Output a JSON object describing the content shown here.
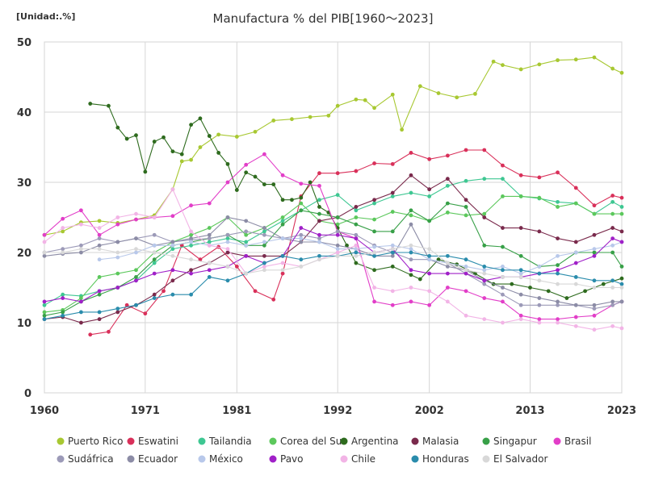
{
  "chart_data": {
    "type": "line",
    "title": "Manufactura % del PIB[1960～2023]",
    "unit_label": "[Unidad:.%]",
    "xlabel": "",
    "ylabel": "",
    "xlim": [
      1960,
      2023
    ],
    "ylim": [
      0,
      50
    ],
    "x_ticks": [
      1960,
      1971,
      1981,
      1992,
      2002,
      2013,
      2023
    ],
    "y_ticks": [
      0,
      10,
      20,
      30,
      40,
      50
    ],
    "grid": true,
    "legend_position": "bottom",
    "series": [
      {
        "name": "Puerto Rico",
        "color": "#a8c832",
        "x": [
          1960,
          1962,
          1964,
          1966,
          1968,
          1970,
          1972,
          1974,
          1975,
          1976,
          1977,
          1979,
          1981,
          1983,
          1985,
          1987,
          1989,
          1991,
          1992,
          1994,
          1995,
          1996,
          1998,
          1999,
          2001,
          2003,
          2005,
          2007,
          2009,
          2010,
          2012,
          2014,
          2016,
          2018,
          2020,
          2022,
          2023
        ],
        "y": [
          22.5,
          23.0,
          24.3,
          24.5,
          24.2,
          24.7,
          25.3,
          29.0,
          33.0,
          33.2,
          35.0,
          36.8,
          36.5,
          37.2,
          38.8,
          39.0,
          39.3,
          39.5,
          40.9,
          41.8,
          41.7,
          40.6,
          42.5,
          37.5,
          43.7,
          42.7,
          42.1,
          42.6,
          47.2,
          46.7,
          46.1,
          46.8,
          47.4,
          47.5,
          47.8,
          46.2,
          45.6
        ]
      },
      {
        "name": "Eswatini",
        "color": "#d9305a",
        "x": [
          1965,
          1967,
          1969,
          1971,
          1973,
          1975,
          1977,
          1979,
          1981,
          1983,
          1985,
          1986,
          1988,
          1990,
          1992,
          1994,
          1996,
          1998,
          2000,
          2002,
          2004,
          2006,
          2008,
          2010,
          2012,
          2014,
          2016,
          2018,
          2020,
          2022,
          2023
        ],
        "y": [
          8.3,
          8.7,
          12.5,
          11.3,
          14.5,
          21.0,
          19.0,
          20.8,
          18.0,
          14.5,
          13.3,
          17.0,
          28.0,
          31.3,
          31.3,
          31.6,
          32.7,
          32.6,
          34.2,
          33.3,
          33.8,
          34.6,
          34.6,
          32.4,
          31.0,
          30.7,
          31.4,
          29.2,
          26.7,
          28.1,
          27.8
        ]
      },
      {
        "name": "Tailandia",
        "color": "#3ec792",
        "x": [
          1960,
          1962,
          1964,
          1966,
          1968,
          1970,
          1972,
          1974,
          1976,
          1978,
          1980,
          1982,
          1984,
          1986,
          1988,
          1990,
          1992,
          1994,
          1996,
          1998,
          2000,
          2002,
          2004,
          2006,
          2008,
          2010,
          2012,
          2014,
          2016,
          2018,
          2020,
          2022,
          2023
        ],
        "y": [
          12.5,
          14.0,
          13.8,
          14.5,
          15.0,
          16.0,
          18.5,
          20.5,
          21.0,
          21.5,
          22.0,
          21.5,
          23.0,
          24.5,
          26.0,
          27.5,
          28.2,
          26.0,
          27.0,
          28.0,
          28.5,
          28.0,
          29.5,
          30.2,
          30.5,
          30.5,
          28.0,
          27.7,
          27.2,
          27.0,
          25.5,
          27.2,
          26.5
        ]
      },
      {
        "name": "Corea del Sur",
        "color": "#5cc85c",
        "x": [
          1960,
          1962,
          1964,
          1966,
          1968,
          1970,
          1972,
          1974,
          1976,
          1978,
          1980,
          1982,
          1984,
          1986,
          1988,
          1990,
          1992,
          1994,
          1996,
          1998,
          2000,
          2002,
          2004,
          2006,
          2008,
          2010,
          2012,
          2014,
          2016,
          2018,
          2020,
          2022,
          2023
        ],
        "y": [
          11.5,
          11.8,
          13.5,
          16.5,
          17.0,
          17.5,
          20.0,
          21.5,
          22.5,
          23.5,
          25.0,
          22.5,
          23.5,
          25.0,
          27.0,
          24.5,
          24.0,
          25.0,
          24.7,
          25.8,
          25.3,
          24.5,
          25.7,
          25.3,
          25.5,
          28.0,
          28.0,
          27.8,
          26.5,
          27.0,
          25.5,
          25.5,
          25.5
        ]
      },
      {
        "name": "Argentina",
        "color": "#2e6b1e",
        "x": [
          1965,
          1967,
          1968,
          1969,
          1970,
          1971,
          1972,
          1973,
          1974,
          1975,
          1976,
          1977,
          1978,
          1979,
          1980,
          1981,
          1982,
          1983,
          1984,
          1985,
          1986,
          1987,
          1988,
          1989,
          1990,
          1991,
          1992,
          1993,
          1994,
          1996,
          1998,
          2000,
          2001,
          2003,
          2005,
          2007,
          2009,
          2011,
          2013,
          2015,
          2017,
          2019,
          2021,
          2023
        ],
        "y": [
          41.2,
          40.9,
          37.8,
          36.2,
          36.7,
          31.5,
          35.8,
          36.4,
          34.4,
          34.0,
          38.2,
          39.1,
          36.6,
          34.2,
          32.6,
          28.9,
          31.4,
          30.8,
          29.7,
          29.7,
          27.5,
          27.5,
          27.8,
          30.0,
          26.5,
          25.7,
          23.5,
          21.0,
          18.5,
          17.5,
          18.0,
          16.8,
          16.2,
          19.0,
          18.3,
          17.0,
          15.5,
          15.5,
          15.0,
          14.5,
          13.5,
          14.5,
          15.5,
          16.3
        ]
      },
      {
        "name": "Malasia",
        "color": "#7a2a4c",
        "x": [
          1960,
          1962,
          1964,
          1966,
          1968,
          1970,
          1972,
          1974,
          1976,
          1978,
          1980,
          1982,
          1984,
          1986,
          1988,
          1990,
          1992,
          1994,
          1996,
          1998,
          2000,
          2002,
          2004,
          2006,
          2008,
          2010,
          2012,
          2014,
          2016,
          2018,
          2020,
          2022,
          2023
        ],
        "y": [
          10.5,
          10.8,
          10.0,
          10.5,
          11.5,
          12.5,
          14.0,
          16.0,
          17.5,
          18.5,
          20.0,
          19.5,
          19.5,
          19.5,
          21.5,
          24.5,
          25.0,
          26.5,
          27.5,
          28.5,
          31.0,
          29.0,
          30.5,
          27.5,
          25.0,
          23.5,
          23.5,
          23.0,
          22.0,
          21.5,
          22.5,
          23.5,
          23.0
        ]
      },
      {
        "name": "Singapur",
        "color": "#38a048",
        "x": [
          1960,
          1962,
          1964,
          1966,
          1968,
          1970,
          1972,
          1974,
          1976,
          1978,
          1980,
          1982,
          1984,
          1986,
          1988,
          1990,
          1992,
          1994,
          1996,
          1998,
          2000,
          2002,
          2004,
          2006,
          2008,
          2010,
          2012,
          2014,
          2016,
          2018,
          2020,
          2022,
          2023
        ],
        "y": [
          11.0,
          11.5,
          13.0,
          14.0,
          15.0,
          16.5,
          19.0,
          21.0,
          21.5,
          22.0,
          22.5,
          21.0,
          21.0,
          24.0,
          26.0,
          25.5,
          25.0,
          24.0,
          23.0,
          23.0,
          26.0,
          24.5,
          27.0,
          26.5,
          21.0,
          20.8,
          19.5,
          18.0,
          18.2,
          20.0,
          20.0,
          20.0,
          18.0
        ]
      },
      {
        "name": "Brasil",
        "color": "#e23ec8",
        "x": [
          1960,
          1962,
          1964,
          1966,
          1968,
          1970,
          1972,
          1974,
          1976,
          1978,
          1980,
          1982,
          1984,
          1986,
          1988,
          1990,
          1992,
          1994,
          1996,
          1998,
          2000,
          2002,
          2004,
          2006,
          2008,
          2010,
          2012,
          2014,
          2016,
          2018,
          2020,
          2022,
          2023
        ],
        "y": [
          22.5,
          24.8,
          26.0,
          22.5,
          24.0,
          24.7,
          25.0,
          25.2,
          26.7,
          27.0,
          30.0,
          32.5,
          34.0,
          31.0,
          29.8,
          29.5,
          23.0,
          22.0,
          13.0,
          12.5,
          13.0,
          12.5,
          15.0,
          14.5,
          13.5,
          13.0,
          11.0,
          10.5,
          10.5,
          10.8,
          11.0,
          12.5,
          13.0
        ]
      },
      {
        "name": "Sudáfrica",
        "color": "#9c9ab8",
        "x": [
          1960,
          1962,
          1964,
          1966,
          1968,
          1970,
          1972,
          1974,
          1976,
          1978,
          1980,
          1982,
          1984,
          1986,
          1988,
          1990,
          1992,
          1994,
          1996,
          1998,
          2000,
          2002,
          2004,
          2006,
          2008,
          2010,
          2012,
          2014,
          2016,
          2018,
          2020,
          2022,
          2023
        ],
        "y": [
          20.0,
          20.5,
          21.0,
          22.0,
          21.5,
          22.0,
          22.5,
          21.5,
          21.8,
          22.0,
          22.5,
          23.0,
          22.5,
          22.0,
          22.5,
          22.0,
          23.0,
          22.5,
          21.0,
          20.0,
          19.0,
          19.0,
          18.5,
          17.0,
          15.5,
          14.0,
          12.5,
          12.5,
          12.5,
          12.5,
          12.0,
          12.5,
          13.0
        ]
      },
      {
        "name": "Ecuador",
        "color": "#8c8ca6",
        "x": [
          1960,
          1962,
          1964,
          1966,
          1968,
          1970,
          1972,
          1974,
          1976,
          1978,
          1980,
          1982,
          1984,
          1986,
          1988,
          1990,
          1992,
          1994,
          1996,
          1998,
          2000,
          2002,
          2004,
          2006,
          2008,
          2010,
          2012,
          2014,
          2016,
          2018,
          2020,
          2022,
          2023
        ],
        "y": [
          19.5,
          19.8,
          20.0,
          21.0,
          21.5,
          22.0,
          21.0,
          21.5,
          22.0,
          22.5,
          25.0,
          24.5,
          23.5,
          22.0,
          21.5,
          21.5,
          21.0,
          20.5,
          19.5,
          19.5,
          24.0,
          19.0,
          18.0,
          17.5,
          16.0,
          15.0,
          14.0,
          13.5,
          13.0,
          12.5,
          12.5,
          13.0,
          13.0
        ]
      },
      {
        "name": "México",
        "color": "#b8c8ea",
        "x": [
          1966,
          1968,
          1970,
          1972,
          1974,
          1976,
          1978,
          1980,
          1982,
          1984,
          1986,
          1988,
          1990,
          1992,
          1994,
          1996,
          1998,
          2000,
          2002,
          2004,
          2006,
          2008,
          2010,
          2012,
          2014,
          2016,
          2018,
          2020,
          2022,
          2023
        ],
        "y": [
          19.0,
          19.3,
          20.0,
          21.0,
          21.0,
          21.5,
          21.0,
          21.5,
          21.0,
          21.5,
          22.0,
          22.0,
          21.5,
          20.5,
          20.5,
          20.8,
          21.0,
          20.5,
          19.0,
          18.5,
          18.0,
          17.5,
          18.0,
          17.0,
          18.0,
          19.5,
          20.0,
          20.5,
          21.0,
          21.5
        ]
      },
      {
        "name": "Pavo",
        "color": "#a020c8",
        "x": [
          1960,
          1962,
          1964,
          1966,
          1968,
          1970,
          1972,
          1974,
          1976,
          1978,
          1980,
          1982,
          1984,
          1986,
          1988,
          1990,
          1992,
          1994,
          1996,
          1998,
          2000,
          2002,
          2004,
          2006,
          2008,
          2010,
          2012,
          2014,
          2016,
          2018,
          2020,
          2022,
          2023
        ],
        "y": [
          13.0,
          13.5,
          13.0,
          14.5,
          15.0,
          16.0,
          17.0,
          17.5,
          17.0,
          17.5,
          18.0,
          19.5,
          18.5,
          19.5,
          23.5,
          22.5,
          22.5,
          22.0,
          20.0,
          20.5,
          17.5,
          17.0,
          17.0,
          17.0,
          16.0,
          16.5,
          16.5,
          17.0,
          17.5,
          18.5,
          19.5,
          22.0,
          21.5
        ]
      },
      {
        "name": "Chile",
        "color": "#f2b4e6",
        "x": [
          1960,
          1962,
          1964,
          1966,
          1968,
          1970,
          1972,
          1974,
          1976,
          1978,
          1980,
          1982,
          1984,
          1986,
          1988,
          1990,
          1992,
          1994,
          1996,
          1998,
          2000,
          2002,
          2004,
          2006,
          2008,
          2010,
          2012,
          2014,
          2016,
          2018,
          2020,
          2022,
          2023
        ],
        "y": [
          21.5,
          23.5,
          24.0,
          23.5,
          25.0,
          25.5,
          25.0,
          29.0,
          23.0,
          21.0,
          20.5,
          17.0,
          18.0,
          18.5,
          18.0,
          19.0,
          20.0,
          21.0,
          15.0,
          14.5,
          15.0,
          14.5,
          13.0,
          11.0,
          10.5,
          10.0,
          10.5,
          10.0,
          10.0,
          9.5,
          9.0,
          9.5,
          9.2
        ]
      },
      {
        "name": "Honduras",
        "color": "#2a8cac",
        "x": [
          1960,
          1962,
          1964,
          1966,
          1968,
          1970,
          1972,
          1974,
          1976,
          1978,
          1980,
          1982,
          1984,
          1986,
          1988,
          1990,
          1992,
          1994,
          1996,
          1998,
          2000,
          2002,
          2004,
          2006,
          2008,
          2010,
          2012,
          2014,
          2016,
          2018,
          2020,
          2022,
          2023
        ],
        "y": [
          10.5,
          11.0,
          11.5,
          11.5,
          12.0,
          12.5,
          13.5,
          14.0,
          14.0,
          16.5,
          16.0,
          17.0,
          18.5,
          19.5,
          19.0,
          19.5,
          19.5,
          20.0,
          19.5,
          20.0,
          20.0,
          19.5,
          19.5,
          19.0,
          18.0,
          17.5,
          17.5,
          17.0,
          17.0,
          16.5,
          16.0,
          16.0,
          15.5
        ]
      },
      {
        "name": "El Salvador",
        "color": "#d8d8d8",
        "x": [
          1960,
          1962,
          1964,
          1966,
          1968,
          1970,
          1972,
          1974,
          1976,
          1978,
          1980,
          1982,
          1984,
          1986,
          1988,
          1990,
          1992,
          1994,
          1996,
          1998,
          2000,
          2002,
          2004,
          2006,
          2008,
          2010,
          2012,
          2014,
          2016,
          2018,
          2020,
          2022,
          2023
        ],
        "y": [
          20.0,
          20.0,
          20.5,
          20.5,
          20.0,
          20.5,
          20.0,
          19.5,
          19.0,
          18.5,
          18.0,
          17.0,
          17.5,
          17.5,
          18.0,
          19.0,
          19.5,
          19.5,
          20.0,
          20.5,
          21.0,
          20.5,
          18.5,
          17.5,
          17.0,
          16.5,
          16.5,
          16.0,
          15.5,
          15.5,
          15.0,
          15.0,
          15.0
        ]
      }
    ]
  }
}
